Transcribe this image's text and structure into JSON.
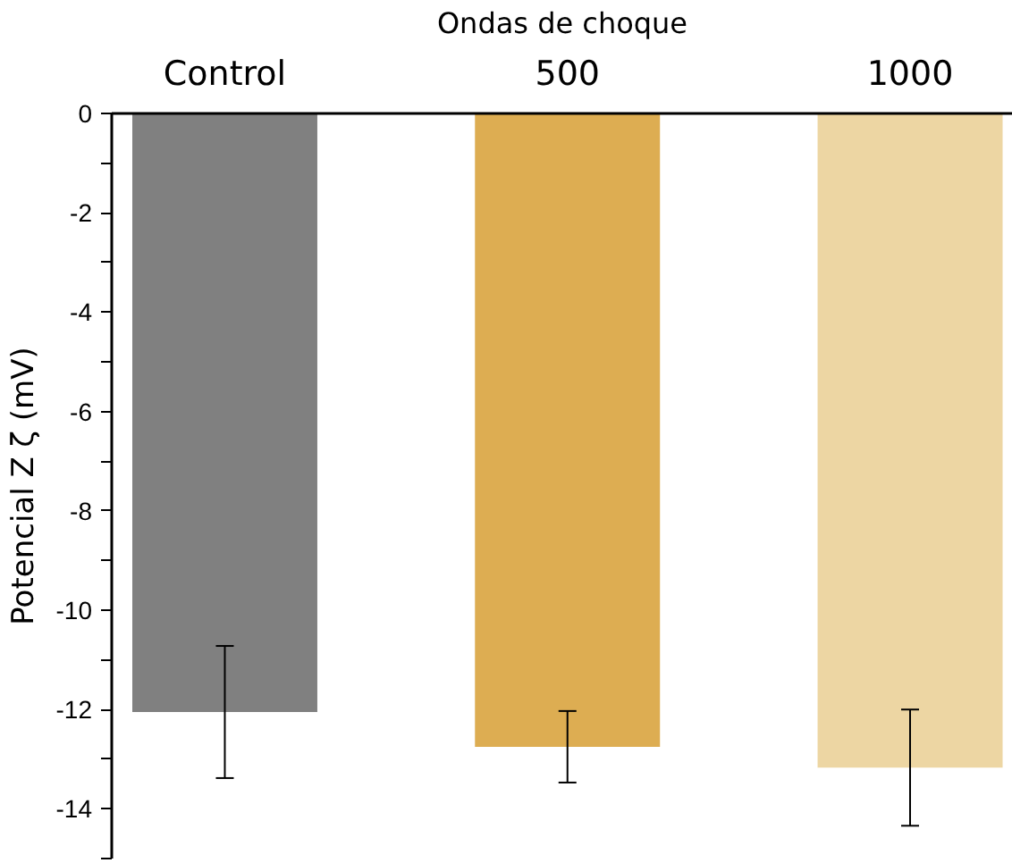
{
  "chart_data": {
    "type": "bar",
    "xlabel": "Ondas de choque",
    "ylabel": "Potencial Z ζ (mV)",
    "categories": [
      "Control",
      "500",
      "1000"
    ],
    "values": [
      -12.05,
      -12.75,
      -13.17
    ],
    "colors": [
      "#808080",
      "#ddad52",
      "#edd6a3"
    ],
    "errors": [
      1.33,
      0.72,
      1.17
    ],
    "ylim": [
      -15,
      0
    ],
    "yticks": [
      {
        "value": -15,
        "label": null
      },
      -14,
      {
        "value": -13,
        "label": null
      },
      -12,
      {
        "value": -11,
        "label": null
      },
      -10,
      {
        "value": -9,
        "label": null
      },
      -8,
      {
        "value": -7,
        "label": null
      },
      -6,
      {
        "value": -5,
        "label": null
      },
      -4,
      {
        "value": -3,
        "label": null
      },
      -2,
      {
        "value": -1,
        "label": null
      },
      0
    ],
    "grid": false
  }
}
